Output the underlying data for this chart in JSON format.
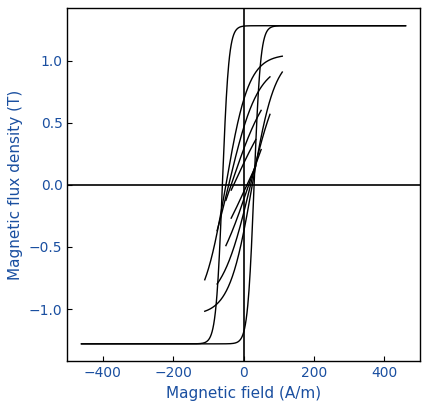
{
  "xlabel": "Magnetic field (A/m)",
  "ylabel": "Magnetic flux density (T)",
  "xlim": [
    -500,
    500
  ],
  "ylim": [
    -1.42,
    1.42
  ],
  "xticks": [
    -400,
    -200,
    0,
    200,
    400
  ],
  "yticks": [
    -1.0,
    -0.5,
    0.0,
    0.5,
    1.0
  ],
  "line_color": "#000000",
  "line_width": 1.0,
  "label_color": "#1a4fa0",
  "tick_color": "#000000",
  "bg_color": "#ffffff",
  "loops": [
    {
      "Hmax": 460,
      "Bsat": 1.28,
      "Hc_up": 30,
      "Hc_dn": -60,
      "k": 0.012
    },
    {
      "Hmax": 110,
      "Bsat": 1.05,
      "Hc_up": 25,
      "Hc_dn": -50,
      "k": 0.014
    },
    {
      "Hmax": 75,
      "Bsat": 0.98,
      "Hc_up": 20,
      "Hc_dn": -42,
      "k": 0.016
    },
    {
      "Hmax": 50,
      "Bsat": 0.93,
      "Hc_up": 15,
      "Hc_dn": -35,
      "k": 0.018
    },
    {
      "Hmax": 35,
      "Bsat": 0.88,
      "Hc_up": 10,
      "Hc_dn": -28,
      "k": 0.02
    }
  ]
}
